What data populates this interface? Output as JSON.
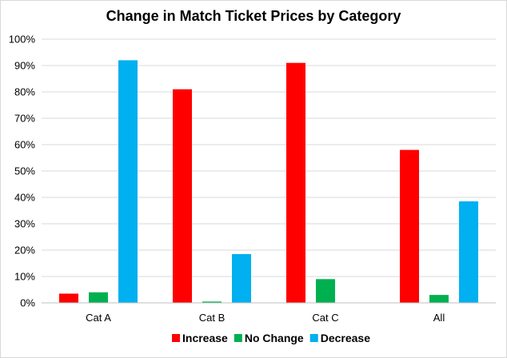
{
  "chart_data": {
    "type": "bar",
    "title": "Change in Match Ticket Prices by Category",
    "categories": [
      "Cat A",
      "Cat B",
      "Cat C",
      "All"
    ],
    "series": [
      {
        "name": "Increase",
        "color": "#ff0000",
        "values": [
          3.5,
          81,
          91,
          58
        ]
      },
      {
        "name": "No Change",
        "color": "#00b050",
        "values": [
          4,
          0.5,
          9,
          3
        ]
      },
      {
        "name": "Decrease",
        "color": "#00b0f0",
        "values": [
          92,
          18.5,
          0,
          38.5
        ]
      }
    ],
    "yticks": [
      "0%",
      "10%",
      "20%",
      "30%",
      "40%",
      "50%",
      "60%",
      "70%",
      "80%",
      "90%",
      "100%"
    ],
    "ylim": [
      0,
      100
    ],
    "grid": true,
    "legend_position": "bottom"
  }
}
